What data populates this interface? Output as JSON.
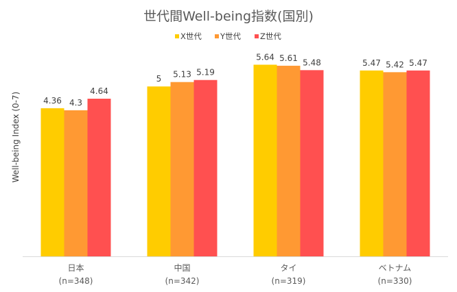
{
  "chart_data": {
    "type": "bar",
    "title": "世代間Well-being指数(国別)",
    "ylabel": "Well-being Index (0-7)",
    "xlabel": "",
    "ylim": [
      0,
      7
    ],
    "grid": false,
    "legend_position": "top",
    "categories": [
      "日本",
      "中国",
      "タイ",
      "ベトナム"
    ],
    "category_sublabels": [
      "(n=348)",
      "(n=342)",
      "(n=319)",
      "(n=330)"
    ],
    "series": [
      {
        "name": "X世代",
        "color": "#FFCC00",
        "values": [
          4.36,
          5,
          5.64,
          5.47
        ],
        "labels": [
          "4.36",
          "5",
          "5.64",
          "5.47"
        ]
      },
      {
        "name": "Y世代",
        "color": "#FF9933",
        "values": [
          4.3,
          5.13,
          5.61,
          5.42
        ],
        "labels": [
          "4.3",
          "5.13",
          "5.61",
          "5.42"
        ]
      },
      {
        "name": "Z世代",
        "color": "#FF5050",
        "values": [
          4.64,
          5.19,
          5.48,
          5.47
        ],
        "labels": [
          "4.64",
          "5.19",
          "5.48",
          "5.47"
        ]
      }
    ]
  }
}
